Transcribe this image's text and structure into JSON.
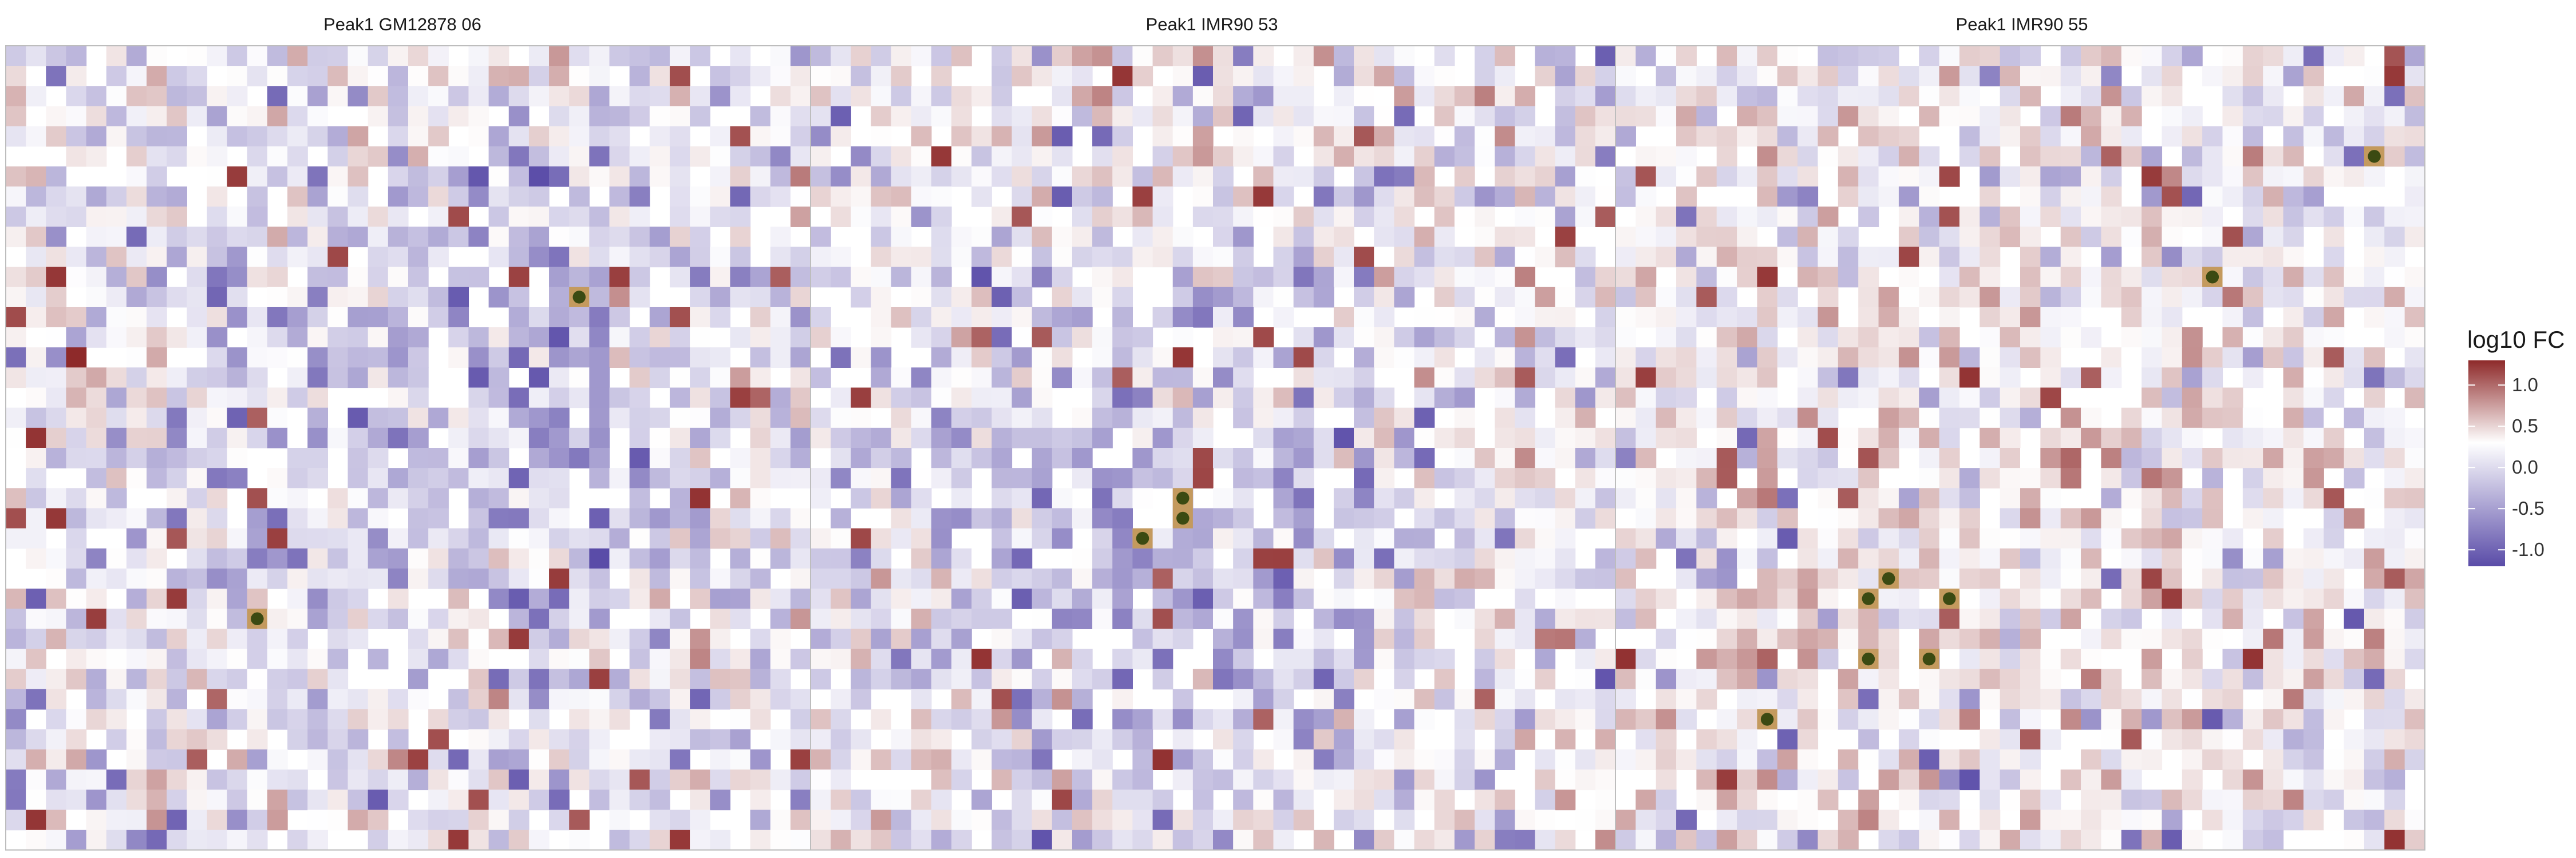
{
  "chart_data": {
    "type": "heatmap",
    "panels": [
      {
        "title": "Peak1 GM12878 06",
        "grid": {
          "nx": 40,
          "ny": 40
        },
        "seed": 11,
        "gradients": [
          {
            "cx": 0.62,
            "cy": 0.42,
            "r": 0.22,
            "amp": -0.35
          },
          {
            "cx": 0.3,
            "cy": 0.6,
            "r": 0.2,
            "amp": -0.15
          }
        ],
        "highlights": [
          {
            "i": 28,
            "j": 12
          },
          {
            "i": 12,
            "j": 28
          }
        ]
      },
      {
        "title": "Peak1 IMR90 53",
        "grid": {
          "nx": 40,
          "ny": 40
        },
        "seed": 23,
        "gradients": [
          {
            "cx": 0.42,
            "cy": 0.62,
            "r": 0.22,
            "amp": -0.45
          },
          {
            "cx": 0.85,
            "cy": 0.5,
            "r": 0.14,
            "amp": 0.0
          }
        ],
        "highlights": [
          {
            "i": 18,
            "j": 22
          },
          {
            "i": 18,
            "j": 23
          },
          {
            "i": 16,
            "j": 24
          }
        ]
      },
      {
        "title": "Peak1 IMR90 55",
        "grid": {
          "nx": 40,
          "ny": 40
        },
        "seed": 37,
        "gradients": [
          {
            "cx": 0.35,
            "cy": 0.68,
            "r": 0.22,
            "amp": 0.2
          },
          {
            "cx": 0.75,
            "cy": 0.45,
            "r": 0.25,
            "amp": 0.1
          }
        ],
        "highlights": [
          {
            "i": 37,
            "j": 5
          },
          {
            "i": 29,
            "j": 11
          },
          {
            "i": 13,
            "j": 26
          },
          {
            "i": 12,
            "j": 27
          },
          {
            "i": 16,
            "j": 27
          },
          {
            "i": 15,
            "j": 30
          },
          {
            "i": 12,
            "j": 30
          },
          {
            "i": 7,
            "j": 33
          }
        ]
      }
    ],
    "legend": {
      "title": "log10 FC",
      "ticks": [
        1.0,
        0.5,
        0.0,
        -0.5,
        -1.0
      ],
      "tick_labels": [
        "1.0",
        "0.5",
        "0.0",
        "-0.5",
        "-1.0"
      ],
      "placement": "right",
      "range": [
        -1.2,
        1.3
      ]
    },
    "colors": {
      "low": "#5a4ca8",
      "mid": "#ffffff",
      "high": "#8e2a2a",
      "highlight_fill": "#3b4a12",
      "highlight_stroke": "#c49a5e",
      "panel_border": "#bdbdbd"
    },
    "xlabel": "",
    "ylabel": ""
  }
}
